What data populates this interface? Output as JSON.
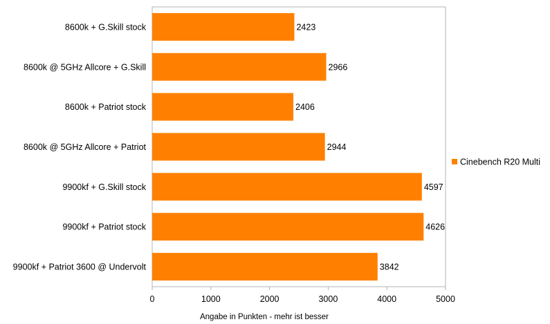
{
  "chart_data": {
    "type": "bar",
    "orientation": "horizontal",
    "categories": [
      "8600k + G.Skill stock",
      "8600k @ 5GHz Allcore + G.Skill",
      "8600k + Patriot stock",
      "8600k @ 5GHz Allcore + Patriot",
      "9900kf + G.Skill stock",
      "9900kf + Patriot stock",
      "9900kf + Patriot 3600 @ Undervolt"
    ],
    "series": [
      {
        "name": "Cinebench R20 Multi",
        "color": "#ff8000",
        "values": [
          2423,
          2966,
          2406,
          2944,
          4597,
          4626,
          3842
        ]
      }
    ],
    "xlabel": "Angabe in Punkten - mehr ist besser",
    "ylabel": "",
    "xlim": [
      0,
      5000
    ],
    "xticks": [
      0,
      1000,
      2000,
      3000,
      4000,
      5000
    ],
    "grid": false,
    "data_labels": true,
    "legend_position": "right"
  }
}
